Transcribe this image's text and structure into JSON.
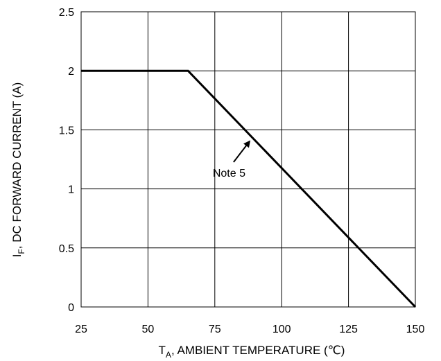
{
  "chart_data": {
    "type": "line",
    "title": "",
    "xlabel": {
      "prefix": "T",
      "subscript": "A",
      "text": ", AMBIENT TEMPERATURE (℃)"
    },
    "ylabel": {
      "prefix": "I",
      "subscript": "F",
      "text": ", DC FORWARD CURRENT (A)"
    },
    "xlim": [
      25,
      150
    ],
    "ylim": [
      0,
      2.5
    ],
    "x_ticks": [
      25,
      50,
      75,
      100,
      125,
      150
    ],
    "x_tick_labels": [
      "25",
      "50",
      "75",
      "100",
      "125",
      "150"
    ],
    "y_ticks": [
      0,
      0.5,
      1,
      1.5,
      2,
      2.5
    ],
    "y_tick_labels": [
      "0",
      "0.5",
      "1",
      "1.5",
      "2",
      "2.5"
    ],
    "grid": true,
    "series": [
      {
        "x": [
          25,
          65,
          150
        ],
        "y": [
          2,
          2,
          0
        ],
        "color": "#000000"
      }
    ],
    "annotations": [
      {
        "text": "Note 5",
        "arrow_to": {
          "x": 88.5,
          "y": 1.42
        }
      }
    ]
  }
}
